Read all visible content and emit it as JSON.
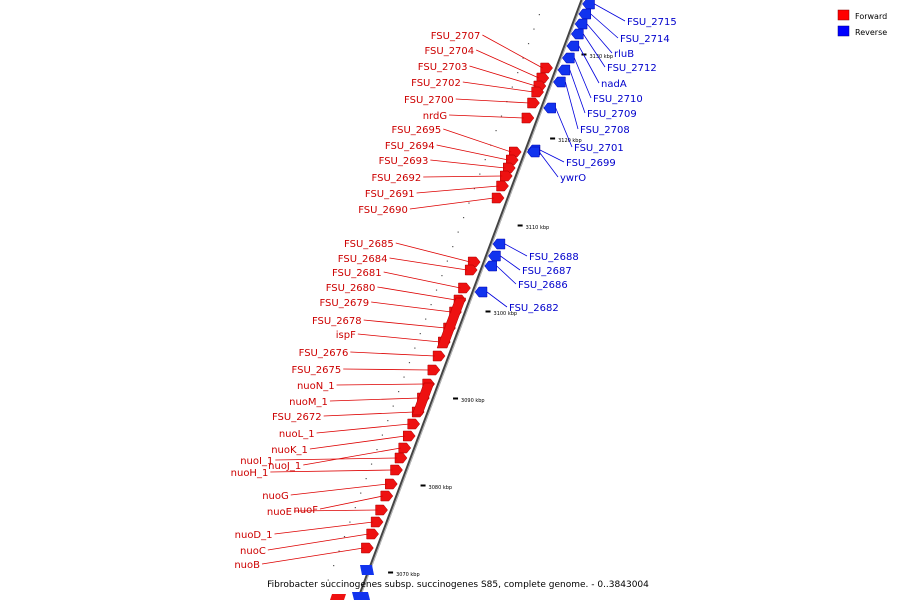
{
  "caption": "Fibrobacter succinogenes subsp. succinogenes S85, complete genome. - 0..3843004",
  "legend": {
    "forward_label": "Forward",
    "reverse_label": "Reverse",
    "forward_color": "#ff0000",
    "reverse_color": "#0000ff"
  },
  "axis_ticks": [
    "3070 kbp",
    "3080 kbp",
    "3090 kbp",
    "3100 kbp",
    "3110 kbp",
    "3120 kbp",
    "3130 kbp"
  ],
  "forward_genes": [
    "FSU_2707",
    "FSU_2704",
    "FSU_2703",
    "FSU_2702",
    "FSU_2700",
    "nrdG",
    "FSU_2695",
    "FSU_2694",
    "FSU_2693",
    "FSU_2692",
    "FSU_2691",
    "FSU_2690",
    "FSU_2685",
    "FSU_2684",
    "FSU_2681",
    "FSU_2680",
    "FSU_2679",
    "FSU_2678",
    "ispF",
    "FSU_2676",
    "FSU_2675",
    "nuoN_1",
    "nuoM_1",
    "FSU_2672",
    "nuoL_1",
    "nuoK_1",
    "nuoJ_1",
    "nuoI_1",
    "nuoH_1",
    "nuoG",
    "nuoF",
    "nuoE",
    "nuoD_1",
    "nuoC",
    "nuoB"
  ],
  "reverse_genes": [
    "FSU_2715",
    "FSU_2714",
    "rluB",
    "FSU_2712",
    "nadA",
    "FSU_2710",
    "FSU_2709",
    "FSU_2708",
    "FSU_2701",
    "FSU_2699",
    "ywrO",
    "FSU_2688",
    "FSU_2687",
    "FSU_2686",
    "FSU_2682"
  ]
}
